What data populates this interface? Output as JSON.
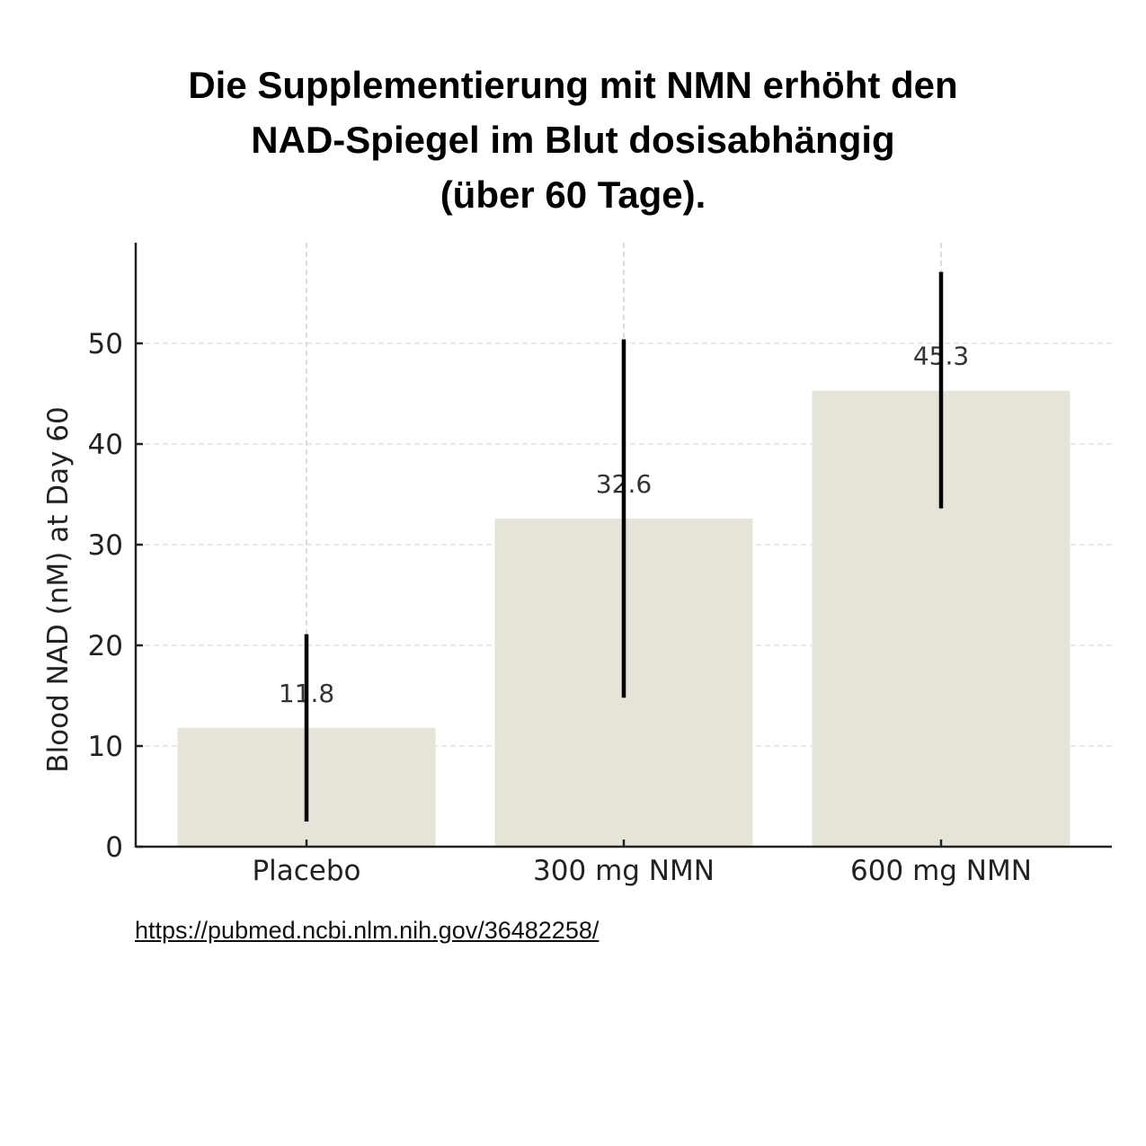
{
  "chart_data": {
    "type": "bar",
    "title": [
      "Die Supplementierung mit NMN erhöht den",
      "NAD-Spiegel im Blut dosisabhängig",
      "(über 60 Tage)."
    ],
    "categories": [
      "Placebo",
      "300 mg NMN",
      "600 mg NMN"
    ],
    "values": [
      11.8,
      32.6,
      45.3
    ],
    "data_labels": [
      "11.8",
      "32.6",
      "45.3"
    ],
    "error_low": [
      2.5,
      14.8,
      33.6
    ],
    "error_high": [
      21.1,
      50.4,
      57.1
    ],
    "xlabel": "",
    "ylabel": "Blood NAD (nM) at Day 60",
    "ylim": [
      0,
      60
    ],
    "yticks": [
      0,
      10,
      20,
      30,
      40,
      50
    ],
    "grid": true,
    "bar_color": "#e6e4d9",
    "error_color": "#000000"
  },
  "source_link": "https://pubmed.ncbi.nlm.nih.gov/36482258/"
}
